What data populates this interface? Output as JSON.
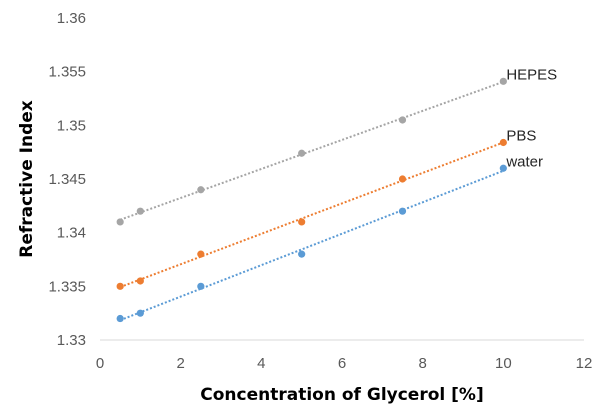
{
  "chart_data": {
    "type": "scatter",
    "title": "",
    "xlabel": "Concentration of Glycerol [%]",
    "ylabel": "Refractive Index",
    "xlim": [
      0,
      12
    ],
    "ylim": [
      1.33,
      1.36
    ],
    "x_ticks": [
      0,
      2,
      4,
      6,
      8,
      10,
      12
    ],
    "y_ticks": [
      1.33,
      1.335,
      1.34,
      1.345,
      1.35,
      1.355,
      1.36
    ],
    "x_tick_labels": [
      "0",
      "2",
      "4",
      "6",
      "8",
      "10",
      "12"
    ],
    "y_tick_labels": [
      "1.33",
      "1.335",
      "1.34",
      "1.345",
      "1.35",
      "1.355",
      "1.36"
    ],
    "grid": false,
    "legend": "none",
    "trendline_style": "dotted linear fit",
    "series": [
      {
        "name": "HEPES",
        "color": "#a5a5a5",
        "x": [
          0.5,
          1,
          2.5,
          5,
          7.5,
          10
        ],
        "y": [
          1.341,
          1.342,
          1.344,
          1.3474,
          1.3505,
          1.3541
        ]
      },
      {
        "name": "PBS",
        "color": "#ed7d31",
        "x": [
          0.5,
          1,
          2.5,
          5,
          7.5,
          10
        ],
        "y": [
          1.335,
          1.3355,
          1.338,
          1.341,
          1.345,
          1.3484
        ]
      },
      {
        "name": "water",
        "color": "#5b9bd5",
        "x": [
          0.5,
          1,
          2.5,
          5,
          7.5,
          10
        ],
        "y": [
          1.332,
          1.3325,
          1.335,
          1.338,
          1.342,
          1.346
        ]
      }
    ]
  }
}
